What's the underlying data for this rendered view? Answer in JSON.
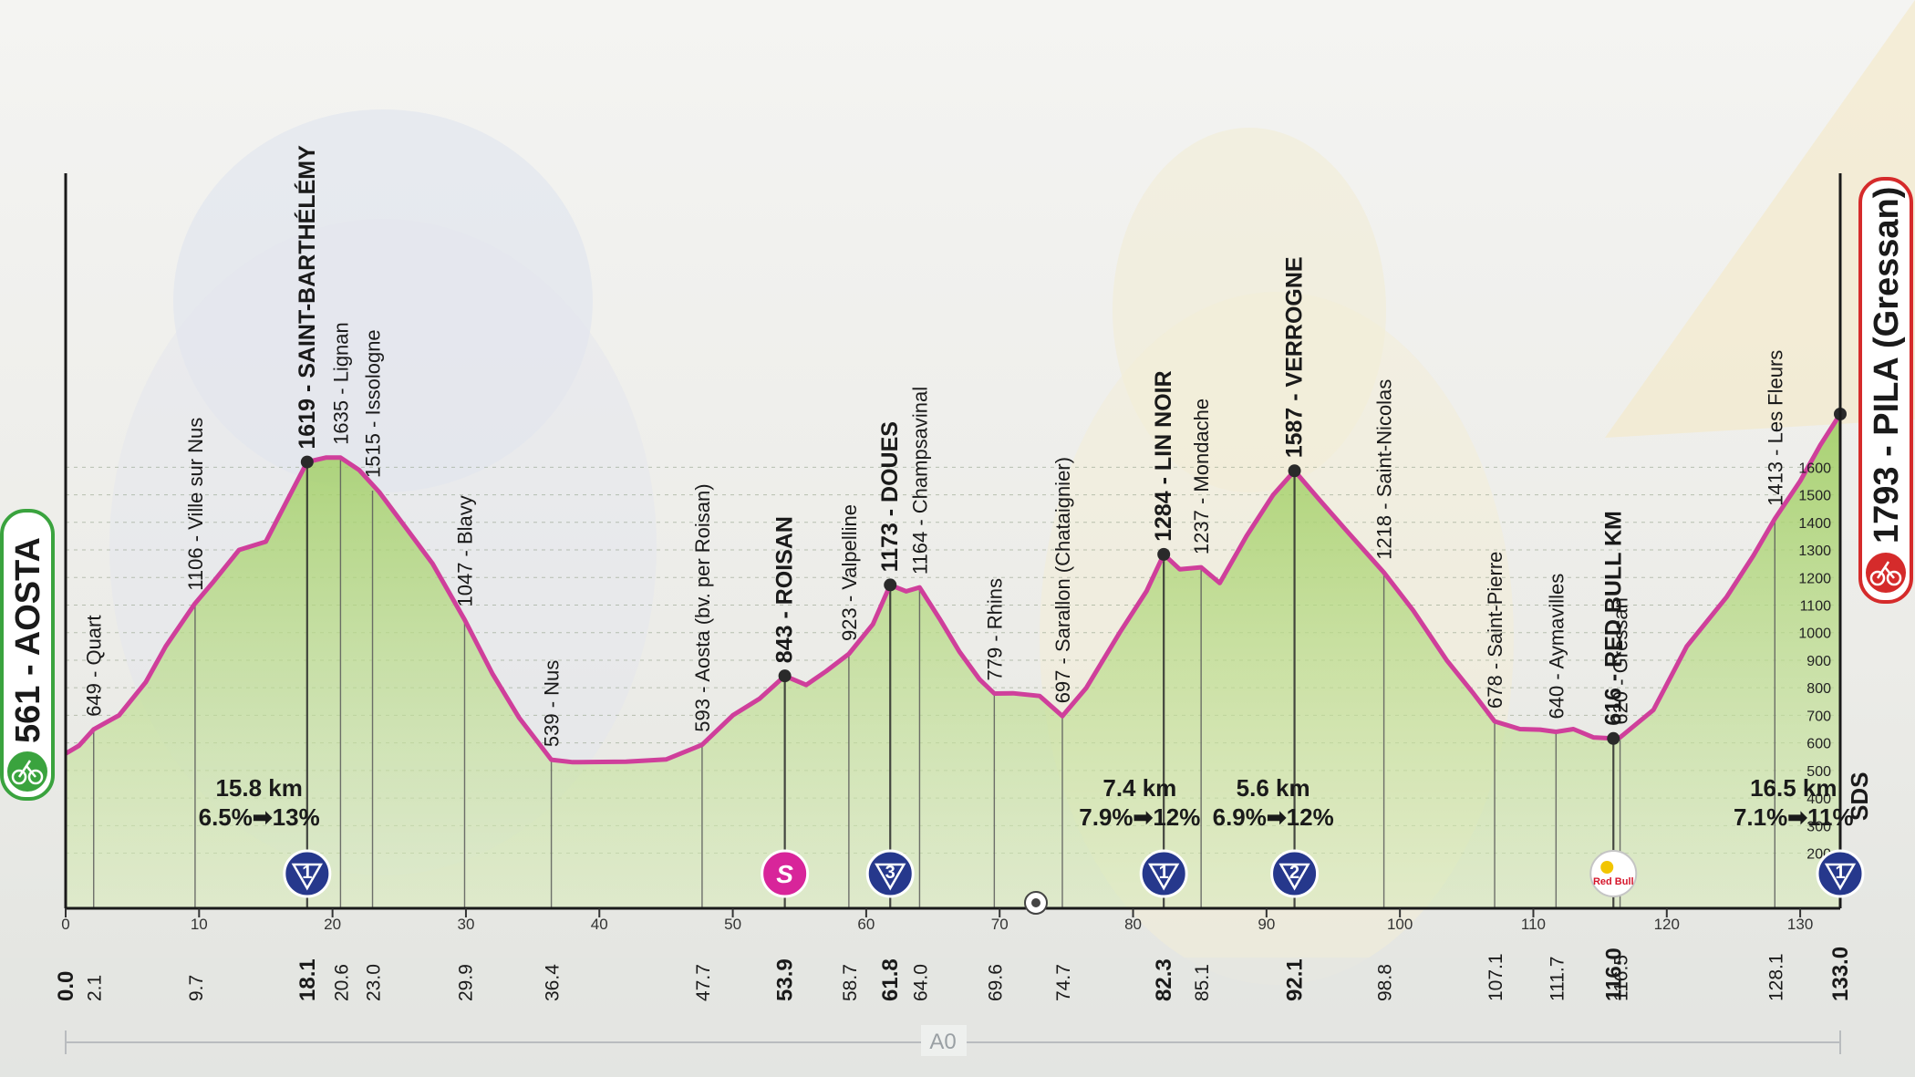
{
  "chart_data": {
    "type": "area",
    "title": "",
    "xlabel": "",
    "ylabel": "",
    "xlim": [
      0,
      133
    ],
    "ylim": [
      0,
      1793
    ],
    "start": {
      "altitude": "561",
      "name": "AOSTA",
      "label": "561 - AOSTA"
    },
    "finish": {
      "altitude": "1793",
      "name": "PILA (Gressan)",
      "label": "1793 - PILA (Gressan)"
    },
    "x_ticks": [
      0,
      10,
      20,
      30,
      40,
      50,
      60,
      70,
      80,
      90,
      100,
      110,
      120,
      130
    ],
    "y_ticks": [
      200,
      300,
      400,
      500,
      600,
      700,
      800,
      900,
      1000,
      1100,
      1200,
      1300,
      1400,
      1500,
      1600
    ],
    "profile": [
      [
        0,
        561
      ],
      [
        1,
        590
      ],
      [
        2.1,
        649
      ],
      [
        4,
        700
      ],
      [
        6,
        820
      ],
      [
        7.5,
        950
      ],
      [
        9.7,
        1106
      ],
      [
        11,
        1180
      ],
      [
        13,
        1300
      ],
      [
        15,
        1330
      ],
      [
        16.5,
        1470
      ],
      [
        18.1,
        1619
      ],
      [
        19.5,
        1635
      ],
      [
        20.6,
        1635
      ],
      [
        22,
        1590
      ],
      [
        23.5,
        1510
      ],
      [
        25.5,
        1380
      ],
      [
        27.5,
        1250
      ],
      [
        29.9,
        1047
      ],
      [
        32,
        850
      ],
      [
        34,
        690
      ],
      [
        36.4,
        539
      ],
      [
        38,
        530
      ],
      [
        42,
        532
      ],
      [
        45,
        540
      ],
      [
        47.7,
        593
      ],
      [
        50,
        700
      ],
      [
        52,
        760
      ],
      [
        53.9,
        843
      ],
      [
        55.5,
        810
      ],
      [
        57,
        860
      ],
      [
        58.7,
        923
      ],
      [
        60.5,
        1030
      ],
      [
        61.8,
        1173
      ],
      [
        63,
        1150
      ],
      [
        64,
        1164
      ],
      [
        65.5,
        1050
      ],
      [
        67,
        930
      ],
      [
        68.5,
        830
      ],
      [
        69.6,
        779
      ],
      [
        71,
        780
      ],
      [
        73,
        770
      ],
      [
        74.7,
        697
      ],
      [
        76.5,
        800
      ],
      [
        79,
        1000
      ],
      [
        81,
        1150
      ],
      [
        82.3,
        1284
      ],
      [
        83.5,
        1230
      ],
      [
        85.1,
        1237
      ],
      [
        86.5,
        1180
      ],
      [
        88.5,
        1350
      ],
      [
        90.5,
        1500
      ],
      [
        92.1,
        1587
      ],
      [
        94,
        1480
      ],
      [
        96,
        1370
      ],
      [
        98.8,
        1218
      ],
      [
        101,
        1080
      ],
      [
        103.5,
        900
      ],
      [
        105.5,
        780
      ],
      [
        107.1,
        678
      ],
      [
        109,
        650
      ],
      [
        110.5,
        648
      ],
      [
        111.7,
        640
      ],
      [
        113,
        650
      ],
      [
        114.5,
        620
      ],
      [
        116,
        616
      ],
      [
        116.5,
        620
      ],
      [
        119,
        720
      ],
      [
        121.5,
        950
      ],
      [
        124.5,
        1130
      ],
      [
        126.5,
        1280
      ],
      [
        128.1,
        1413
      ],
      [
        130,
        1550
      ],
      [
        131.5,
        1680
      ],
      [
        133,
        1793
      ]
    ],
    "places": [
      {
        "km": "0.0",
        "km_val": 0,
        "alt": 561,
        "label": "",
        "bold": true
      },
      {
        "km": "2.1",
        "km_val": 2.1,
        "alt": 649,
        "label": "649 - Quart",
        "bold": false
      },
      {
        "km": "9.7",
        "km_val": 9.7,
        "alt": 1106,
        "label": "1106 - Ville sur Nus",
        "bold": false
      },
      {
        "km": "18.1",
        "km_val": 18.1,
        "alt": 1619,
        "label": "1619 - SAINT-BARTHÉLÉMY",
        "bold": true
      },
      {
        "km": "20.6",
        "km_val": 20.6,
        "alt": 1635,
        "label": "1635 - Lignan",
        "bold": false
      },
      {
        "km": "23.0",
        "km_val": 23.0,
        "alt": 1515,
        "label": "1515 - Issologne",
        "bold": false
      },
      {
        "km": "29.9",
        "km_val": 29.9,
        "alt": 1047,
        "label": "1047 - Blavy",
        "bold": false
      },
      {
        "km": "36.4",
        "km_val": 36.4,
        "alt": 539,
        "label": "539 - Nus",
        "bold": false
      },
      {
        "km": "47.7",
        "km_val": 47.7,
        "alt": 593,
        "label": "593 - Aosta (bv. per Roisan)",
        "bold": false
      },
      {
        "km": "53.9",
        "km_val": 53.9,
        "alt": 843,
        "label": "843 - ROISAN",
        "bold": true
      },
      {
        "km": "58.7",
        "km_val": 58.7,
        "alt": 923,
        "label": "923 - Valpelline",
        "bold": false
      },
      {
        "km": "61.8",
        "km_val": 61.8,
        "alt": 1173,
        "label": "1173 - DOUES",
        "bold": true
      },
      {
        "km": "64.0",
        "km_val": 64.0,
        "alt": 1164,
        "label": "1164 - Champsavinal",
        "bold": false
      },
      {
        "km": "69.6",
        "km_val": 69.6,
        "alt": 779,
        "label": "779 - Rhins",
        "bold": false
      },
      {
        "km": "74.7",
        "km_val": 74.7,
        "alt": 697,
        "label": "697 - Sarallon (Chataignier)",
        "bold": false
      },
      {
        "km": "82.3",
        "km_val": 82.3,
        "alt": 1284,
        "label": "1284 - LIN NOIR",
        "bold": true
      },
      {
        "km": "85.1",
        "km_val": 85.1,
        "alt": 1237,
        "label": "1237 - Mondache",
        "bold": false
      },
      {
        "km": "92.1",
        "km_val": 92.1,
        "alt": 1587,
        "label": "1587 - VERROGNE",
        "bold": true
      },
      {
        "km": "98.8",
        "km_val": 98.8,
        "alt": 1218,
        "label": "1218 - Saint-Nicolas",
        "bold": false
      },
      {
        "km": "107.1",
        "km_val": 107.1,
        "alt": 678,
        "label": "678 - Saint-Pierre",
        "bold": false
      },
      {
        "km": "111.7",
        "km_val": 111.7,
        "alt": 640,
        "label": "640 - Aymavilles",
        "bold": false
      },
      {
        "km": "116.0",
        "km_val": 116.0,
        "alt": 616,
        "label": "616 - RED BULL KM",
        "bold": true
      },
      {
        "km": "116.5",
        "km_val": 116.5,
        "alt": 620,
        "label": "620 - Gressan",
        "bold": false
      },
      {
        "km": "128.1",
        "km_val": 128.1,
        "alt": 1413,
        "label": "1413 - Les Fleurs",
        "bold": false
      },
      {
        "km": "133.0",
        "km_val": 133.0,
        "alt": 1793,
        "label": "",
        "bold": true
      }
    ],
    "markers": [
      {
        "km_val": 18.1,
        "label": "1",
        "kind": "gpm",
        "color": "#26388c"
      },
      {
        "km_val": 53.9,
        "label": "S",
        "kind": "sprint",
        "color": "#d8259a"
      },
      {
        "km_val": 61.8,
        "label": "3",
        "kind": "gpm",
        "color": "#26388c"
      },
      {
        "km_val": 82.3,
        "label": "1",
        "kind": "gpm",
        "color": "#26388c"
      },
      {
        "km_val": 92.1,
        "label": "2",
        "kind": "gpm",
        "color": "#26388c"
      },
      {
        "km_val": 116.0,
        "label": "Red Bull",
        "kind": "redbull",
        "color": "#d5162b"
      },
      {
        "km_val": 133.0,
        "label": "1",
        "kind": "gpm",
        "color": "#26388c"
      }
    ],
    "climbs": [
      {
        "km_val": 14.5,
        "length": "15.8 km",
        "gradient": "6.5%➡13%"
      },
      {
        "km_val": 80.5,
        "length": "7.4 km",
        "gradient": "7.9%➡12%"
      },
      {
        "km_val": 90.5,
        "length": "5.6 km",
        "gradient": "6.9%➡12%"
      },
      {
        "km_val": 129.5,
        "length": "16.5 km",
        "gradient": "7.1%➡11%"
      }
    ],
    "route_label": "A0",
    "segment_label": "SDS",
    "colors": {
      "profile_line": "#cf3f9b",
      "fill": "#a6cf6e",
      "axis": "#1a1a1a",
      "start_badge": "#3aa33e",
      "finish_badge": "#d52b2b",
      "gpm": "#26388c"
    }
  }
}
